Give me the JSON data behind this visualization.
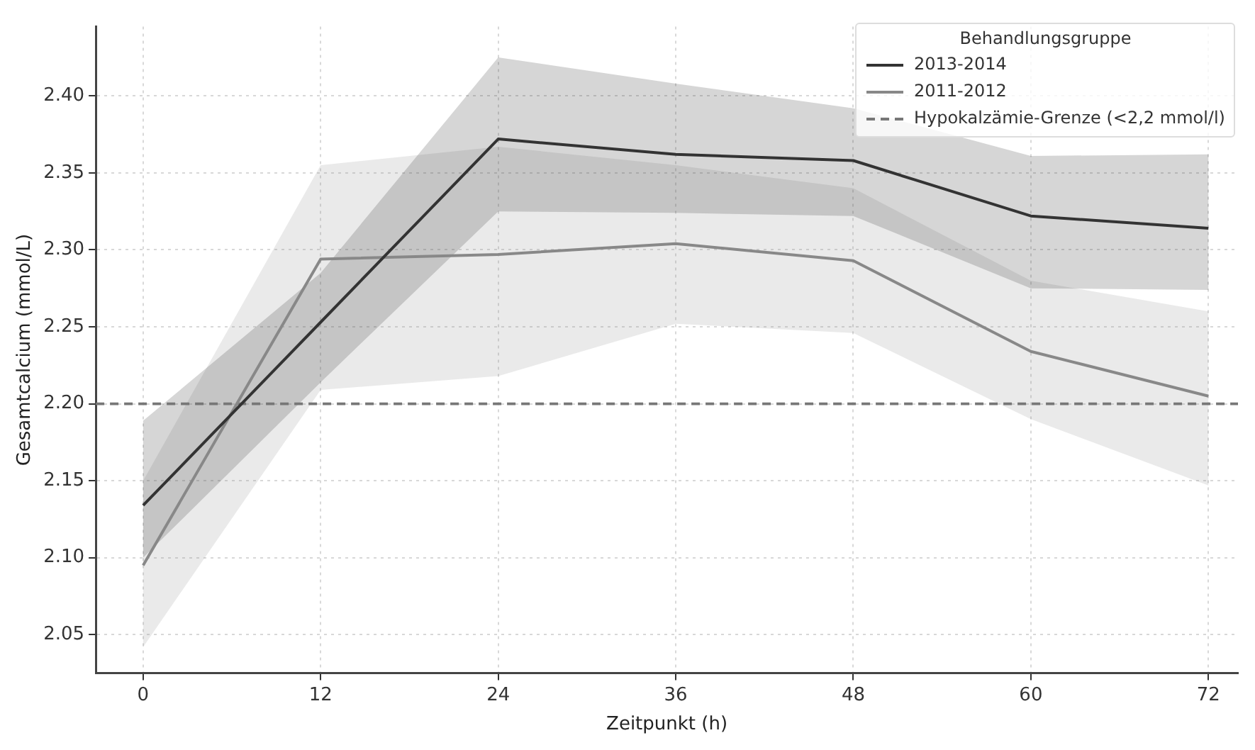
{
  "chart_data": {
    "type": "line",
    "xlabel": "Zeitpunkt (h)",
    "ylabel": "Gesamtcalcium (mmol/L)",
    "legend_title": "Behandlungsgruppe",
    "x": [
      0,
      12,
      24,
      36,
      48,
      60,
      72
    ],
    "series": [
      {
        "name": "2013-2014",
        "color": "#333333",
        "values": [
          2.134,
          2.253,
          2.372,
          2.362,
          2.358,
          2.322,
          2.314
        ],
        "lower": [
          2.1,
          2.214,
          2.325,
          2.324,
          2.322,
          2.275,
          2.274
        ],
        "upper": [
          2.189,
          2.285,
          2.425,
          2.408,
          2.392,
          2.361,
          2.362
        ]
      },
      {
        "name": "2011-2012",
        "color": "#888888",
        "values": [
          2.095,
          2.294,
          2.297,
          2.304,
          2.293,
          2.234,
          2.205
        ],
        "lower": [
          2.042,
          2.209,
          2.218,
          2.252,
          2.246,
          2.19,
          2.147
        ],
        "upper": [
          2.15,
          2.355,
          2.367,
          2.355,
          2.34,
          2.28,
          2.26
        ]
      }
    ],
    "ref_lines": [
      {
        "axis": "y",
        "value": 2.2,
        "label": "Hypokalzämie-Grenze (<2,2 mmol/l)",
        "color": "#777777",
        "line_style": "dashed"
      }
    ],
    "xlim": [
      -3.2,
      74
    ],
    "xticks": [
      0,
      12,
      24,
      36,
      48,
      60,
      72
    ],
    "ylim": [
      2.025,
      2.445
    ],
    "yticks": [
      {
        "value": 2.05,
        "label": "2.05"
      },
      {
        "value": 2.1,
        "label": "2.10"
      },
      {
        "value": 2.15,
        "label": "2.15"
      },
      {
        "value": 2.2,
        "label": "2.20"
      },
      {
        "value": 2.25,
        "label": "2.25"
      },
      {
        "value": 2.3,
        "label": "2.30"
      },
      {
        "value": 2.35,
        "label": "2.35"
      },
      {
        "value": 2.4,
        "label": "2.40"
      }
    ],
    "grid": true,
    "legend": "top right",
    "line_style": "solid",
    "marker": "none"
  }
}
